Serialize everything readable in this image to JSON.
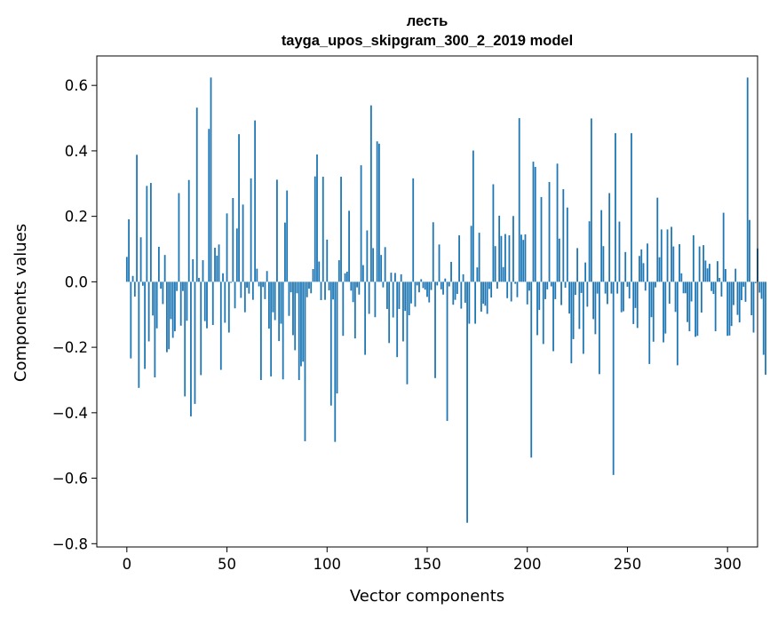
{
  "chart_data": {
    "type": "bar",
    "title_line1": "лесть",
    "title_line2": "tayga_upos_skipgram_300_2_2019 model",
    "xlabel": "Vector components",
    "ylabel": "Components values",
    "xlim": [
      -15,
      315
    ],
    "ylim": [
      -0.81,
      0.69
    ],
    "xticks": [
      0,
      50,
      100,
      150,
      200,
      250,
      300
    ],
    "yticks": [
      -0.8,
      -0.6,
      -0.4,
      -0.2,
      0.0,
      0.2,
      0.4,
      0.6
    ],
    "ytick_labels": [
      "−0.8",
      "−0.6",
      "−0.4",
      "−0.2",
      "0.0",
      "0.2",
      "0.4",
      "0.6"
    ],
    "bar_color": "#1f77b4",
    "values": [
      0.076,
      0.191,
      -0.234,
      0.018,
      -0.045,
      0.388,
      -0.324,
      0.136,
      -0.012,
      -0.266,
      0.293,
      -0.182,
      0.302,
      -0.103,
      -0.292,
      -0.142,
      0.107,
      -0.021,
      -0.068,
      0.082,
      -0.215,
      -0.206,
      -0.114,
      -0.171,
      -0.151,
      -0.028,
      0.271,
      -0.134,
      -0.028,
      -0.35,
      -0.119,
      0.311,
      -0.411,
      0.069,
      -0.373,
      0.532,
      0.012,
      -0.285,
      0.066,
      -0.12,
      -0.142,
      0.467,
      0.624,
      -0.132,
      0.104,
      0.08,
      0.114,
      -0.269,
      0.026,
      -0.125,
      0.209,
      -0.155,
      -0.003,
      0.256,
      -0.081,
      0.163,
      0.451,
      -0.049,
      0.236,
      -0.093,
      -0.018,
      -0.036,
      0.316,
      -0.055,
      0.493,
      0.04,
      -0.014,
      -0.3,
      -0.016,
      -0.053,
      0.033,
      -0.143,
      -0.289,
      -0.093,
      -0.117,
      0.312,
      -0.181,
      -0.128,
      -0.298,
      0.181,
      0.279,
      -0.104,
      -0.032,
      -0.163,
      -0.209,
      -0.035,
      -0.3,
      -0.258,
      -0.244,
      -0.487,
      -0.047,
      -0.021,
      -0.035,
      0.039,
      0.322,
      0.389,
      0.062,
      -0.056,
      0.321,
      -0.055,
      0.129,
      -0.026,
      -0.378,
      -0.054,
      -0.489,
      -0.341,
      0.066,
      0.321,
      -0.165,
      0.026,
      0.031,
      0.217,
      -0.027,
      -0.062,
      -0.173,
      -0.017,
      -0.039,
      0.356,
      0.051,
      -0.223,
      0.157,
      -0.098,
      0.539,
      0.103,
      -0.108,
      0.429,
      0.422,
      0.082,
      -0.017,
      0.106,
      -0.083,
      -0.187,
      0.028,
      -0.109,
      0.027,
      -0.23,
      -0.083,
      0.023,
      -0.182,
      -0.089,
      -0.313,
      -0.102,
      -0.066,
      0.316,
      -0.076,
      -0.011,
      -0.032,
      0.008,
      -0.019,
      -0.024,
      -0.046,
      -0.063,
      -0.025,
      0.182,
      -0.294,
      -0.011,
      0.114,
      -0.023,
      -0.039,
      0.01,
      -0.425,
      -0.014,
      0.061,
      -0.07,
      -0.055,
      -0.037,
      0.142,
      -0.082,
      0.023,
      -0.064,
      -0.736,
      -0.128,
      0.171,
      0.401,
      -0.128,
      0.044,
      0.15,
      -0.091,
      -0.067,
      -0.073,
      -0.098,
      -0.022,
      -0.048,
      0.298,
      0.109,
      -0.021,
      0.202,
      0.14,
      0.045,
      0.146,
      -0.05,
      0.142,
      -0.06,
      0.201,
      -0.006,
      -0.047,
      0.5,
      0.144,
      0.128,
      0.145,
      -0.069,
      -0.027,
      -0.537,
      0.367,
      0.351,
      -0.163,
      -0.086,
      0.259,
      -0.19,
      -0.053,
      -0.023,
      0.305,
      -0.014,
      -0.212,
      -0.053,
      0.361,
      0.132,
      -0.071,
      0.283,
      -0.018,
      0.227,
      -0.097,
      -0.249,
      -0.175,
      -0.04,
      0.103,
      -0.144,
      -0.034,
      -0.22,
      0.059,
      -0.076,
      0.185,
      0.499,
      -0.114,
      -0.16,
      -0.036,
      -0.282,
      0.219,
      0.109,
      -0.036,
      -0.068,
      0.271,
      -0.036,
      -0.59,
      0.454,
      -0.036,
      0.184,
      -0.093,
      -0.09,
      0.091,
      -0.015,
      -0.051,
      0.454,
      -0.129,
      -0.08,
      -0.141,
      0.079,
      0.099,
      0.057,
      -0.027,
      0.117,
      -0.251,
      -0.108,
      -0.183,
      -0.017,
      0.257,
      0.075,
      0.16,
      -0.185,
      -0.158,
      0.16,
      -0.067,
      0.168,
      0.108,
      -0.092,
      -0.255,
      0.115,
      0.026,
      -0.035,
      -0.035,
      -0.123,
      -0.151,
      -0.06,
      0.142,
      -0.168,
      -0.165,
      0.108,
      -0.094,
      0.112,
      0.065,
      0.041,
      0.055,
      -0.028,
      -0.037,
      -0.151,
      0.063,
      0.012,
      -0.045,
      0.211,
      0.039,
      -0.165,
      -0.164,
      -0.135,
      -0.071,
      0.04,
      -0.101,
      -0.124,
      -0.056,
      -0.015,
      -0.061,
      0.624,
      0.189,
      -0.102,
      -0.155,
      -0.004,
      0.102,
      -0.033,
      -0.052,
      -0.223,
      -0.284
    ]
  }
}
